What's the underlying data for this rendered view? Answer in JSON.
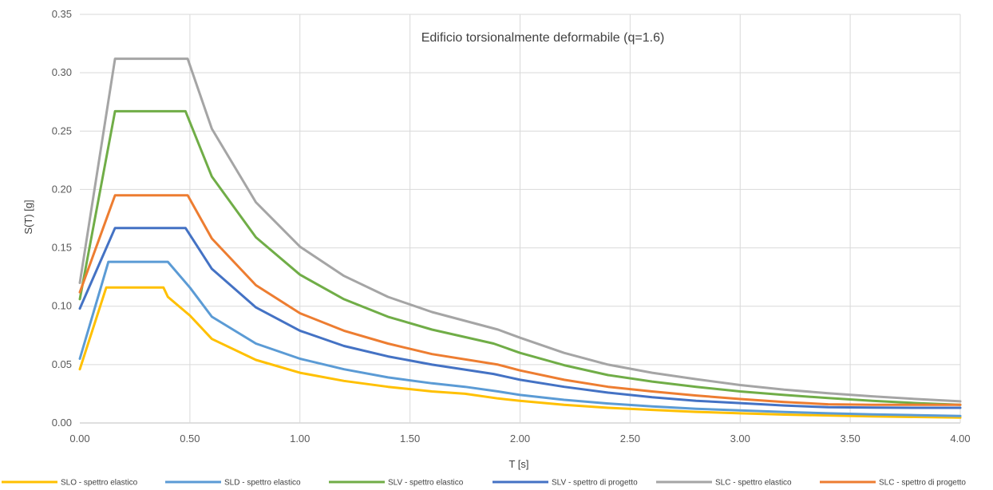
{
  "chart_data": {
    "type": "line",
    "title": "Edificio torsionalmente deformabile (q=1.6)",
    "xlabel": "T [s]",
    "ylabel": "S(T) [g]",
    "xlim": [
      0,
      4
    ],
    "ylim": [
      0,
      0.35
    ],
    "xticks": [
      "0.00",
      "0.50",
      "1.00",
      "1.50",
      "2.00",
      "2.50",
      "3.00",
      "3.50",
      "4.00"
    ],
    "yticks": [
      "0.00",
      "0.05",
      "0.10",
      "0.15",
      "0.20",
      "0.25",
      "0.30",
      "0.35"
    ],
    "grid": true,
    "legend_position": "bottom",
    "series": [
      {
        "name": "SLO - spettro elastico",
        "color": "#FFC000",
        "points": [
          [
            0,
            0.046
          ],
          [
            0.12,
            0.116
          ],
          [
            0.38,
            0.116
          ],
          [
            0.4,
            0.108
          ],
          [
            0.5,
            0.092
          ],
          [
            0.6,
            0.072
          ],
          [
            0.8,
            0.054
          ],
          [
            1.0,
            0.043
          ],
          [
            1.2,
            0.036
          ],
          [
            1.4,
            0.031
          ],
          [
            1.6,
            0.027
          ],
          [
            1.75,
            0.025
          ],
          [
            1.9,
            0.021
          ],
          [
            2.0,
            0.019
          ],
          [
            2.2,
            0.0155
          ],
          [
            2.4,
            0.013
          ],
          [
            2.6,
            0.0112
          ],
          [
            2.8,
            0.0095
          ],
          [
            3.0,
            0.0083
          ],
          [
            3.2,
            0.0072
          ],
          [
            3.4,
            0.0064
          ],
          [
            3.6,
            0.0057
          ],
          [
            3.8,
            0.0051
          ],
          [
            4.0,
            0.0046
          ]
        ]
      },
      {
        "name": "SLD - spettro elastico",
        "color": "#5B9BD5",
        "points": [
          [
            0,
            0.055
          ],
          [
            0.13,
            0.138
          ],
          [
            0.4,
            0.138
          ],
          [
            0.5,
            0.116
          ],
          [
            0.6,
            0.091
          ],
          [
            0.8,
            0.068
          ],
          [
            1.0,
            0.055
          ],
          [
            1.2,
            0.046
          ],
          [
            1.4,
            0.039
          ],
          [
            1.6,
            0.034
          ],
          [
            1.75,
            0.031
          ],
          [
            1.9,
            0.027
          ],
          [
            2.0,
            0.024
          ],
          [
            2.2,
            0.0198
          ],
          [
            2.4,
            0.0167
          ],
          [
            2.6,
            0.0142
          ],
          [
            2.8,
            0.0122
          ],
          [
            3.0,
            0.0107
          ],
          [
            3.2,
            0.0094
          ],
          [
            3.4,
            0.0083
          ],
          [
            3.6,
            0.0074
          ],
          [
            3.8,
            0.0067
          ],
          [
            4.0,
            0.006
          ]
        ]
      },
      {
        "name": "SLV - spettro elastico",
        "color": "#70AD47",
        "points": [
          [
            0,
            0.106
          ],
          [
            0.16,
            0.267
          ],
          [
            0.48,
            0.267
          ],
          [
            0.6,
            0.211
          ],
          [
            0.8,
            0.159
          ],
          [
            1.0,
            0.127
          ],
          [
            1.2,
            0.106
          ],
          [
            1.4,
            0.091
          ],
          [
            1.6,
            0.08
          ],
          [
            1.88,
            0.068
          ],
          [
            2.0,
            0.06
          ],
          [
            2.2,
            0.0495
          ],
          [
            2.4,
            0.041
          ],
          [
            2.6,
            0.0355
          ],
          [
            2.8,
            0.031
          ],
          [
            3.0,
            0.027
          ],
          [
            3.2,
            0.024
          ],
          [
            3.4,
            0.0213
          ],
          [
            3.6,
            0.019
          ],
          [
            3.8,
            0.017
          ],
          [
            4.0,
            0.0155
          ]
        ]
      },
      {
        "name": "SLV - spettro di progetto",
        "color": "#4472C4",
        "points": [
          [
            0,
            0.098
          ],
          [
            0.16,
            0.167
          ],
          [
            0.48,
            0.167
          ],
          [
            0.6,
            0.132
          ],
          [
            0.8,
            0.099
          ],
          [
            1.0,
            0.079
          ],
          [
            1.2,
            0.066
          ],
          [
            1.4,
            0.057
          ],
          [
            1.6,
            0.05
          ],
          [
            1.88,
            0.042
          ],
          [
            2.0,
            0.037
          ],
          [
            2.2,
            0.031
          ],
          [
            2.4,
            0.026
          ],
          [
            2.6,
            0.022
          ],
          [
            2.8,
            0.019
          ],
          [
            3.0,
            0.017
          ],
          [
            3.2,
            0.015
          ],
          [
            3.4,
            0.0135
          ],
          [
            3.6,
            0.0131
          ],
          [
            3.8,
            0.013
          ],
          [
            4.0,
            0.013
          ]
        ]
      },
      {
        "name": "SLC - spettro elastico",
        "color": "#A5A5A5",
        "points": [
          [
            0,
            0.12
          ],
          [
            0.16,
            0.312
          ],
          [
            0.49,
            0.312
          ],
          [
            0.6,
            0.252
          ],
          [
            0.8,
            0.189
          ],
          [
            1.0,
            0.151
          ],
          [
            1.2,
            0.126
          ],
          [
            1.4,
            0.108
          ],
          [
            1.6,
            0.095
          ],
          [
            1.9,
            0.08
          ],
          [
            2.0,
            0.073
          ],
          [
            2.2,
            0.06
          ],
          [
            2.4,
            0.05
          ],
          [
            2.6,
            0.043
          ],
          [
            2.8,
            0.0375
          ],
          [
            3.0,
            0.0325
          ],
          [
            3.2,
            0.0285
          ],
          [
            3.4,
            0.0255
          ],
          [
            3.6,
            0.0228
          ],
          [
            3.8,
            0.0205
          ],
          [
            4.0,
            0.0185
          ]
        ]
      },
      {
        "name": "SLC - spettro di progetto",
        "color": "#ED7D31",
        "points": [
          [
            0,
            0.112
          ],
          [
            0.16,
            0.195
          ],
          [
            0.49,
            0.195
          ],
          [
            0.6,
            0.158
          ],
          [
            0.8,
            0.118
          ],
          [
            1.0,
            0.094
          ],
          [
            1.2,
            0.079
          ],
          [
            1.4,
            0.068
          ],
          [
            1.6,
            0.059
          ],
          [
            1.9,
            0.05
          ],
          [
            2.0,
            0.045
          ],
          [
            2.2,
            0.037
          ],
          [
            2.4,
            0.031
          ],
          [
            2.6,
            0.027
          ],
          [
            2.8,
            0.0235
          ],
          [
            3.0,
            0.0205
          ],
          [
            3.2,
            0.018
          ],
          [
            3.4,
            0.016
          ],
          [
            3.6,
            0.0155
          ],
          [
            3.8,
            0.0155
          ],
          [
            4.0,
            0.0155
          ]
        ]
      }
    ]
  }
}
